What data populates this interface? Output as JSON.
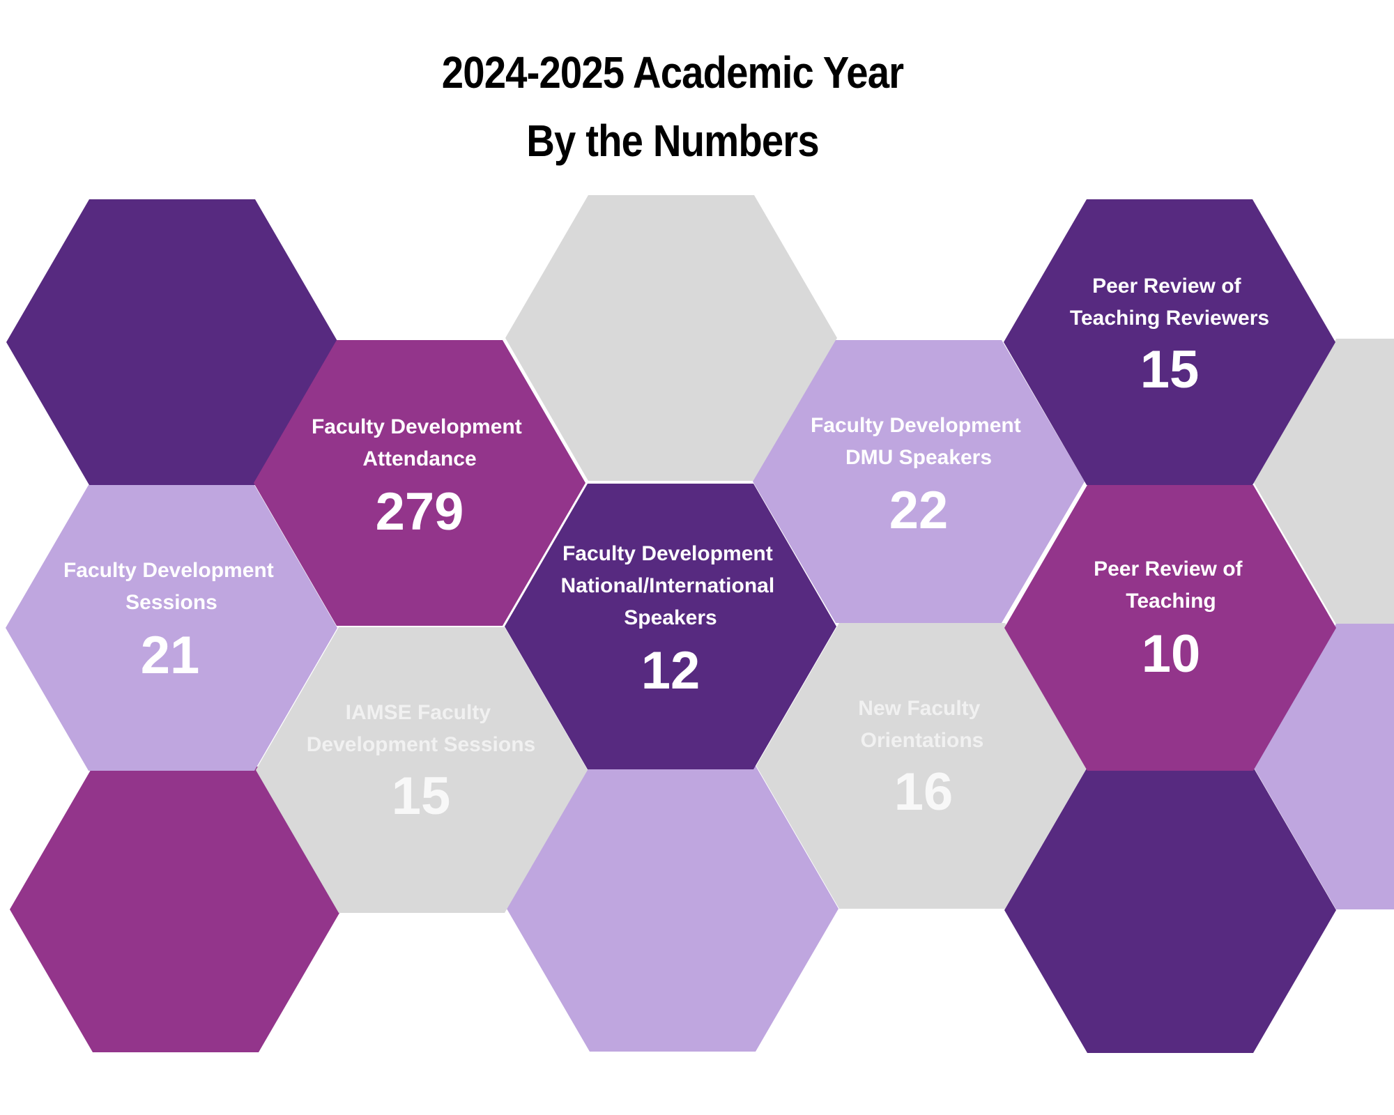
{
  "title": {
    "line1": "2024-2025 Academic Year",
    "line2": "By the Numbers"
  },
  "colors": {
    "dark_purple": "#572a80",
    "magenta": "#93358b",
    "lavender": "#bfa6df",
    "light_gray": "#d9d9d9"
  },
  "stats": [
    {
      "label_lines": [
        "Faculty Development",
        "Attendance"
      ],
      "value": "279"
    },
    {
      "label_lines": [
        "Faculty Development",
        "Sessions"
      ],
      "value": "21"
    },
    {
      "label_lines": [
        "IAMSE Faculty",
        "Development Sessions"
      ],
      "value": "15"
    },
    {
      "label_lines": [
        "Faculty Development",
        "National/International",
        "Speakers"
      ],
      "value": "12"
    },
    {
      "label_lines": [
        "Faculty Development",
        "DMU Speakers"
      ],
      "value": "22"
    },
    {
      "label_lines": [
        "New Faculty",
        "Orientations"
      ],
      "value": "16"
    },
    {
      "label_lines": [
        "Peer Review of",
        "Teaching Reviewers"
      ],
      "value": "15"
    },
    {
      "label_lines": [
        "Peer Review of",
        "Teaching"
      ],
      "value": "10"
    }
  ]
}
